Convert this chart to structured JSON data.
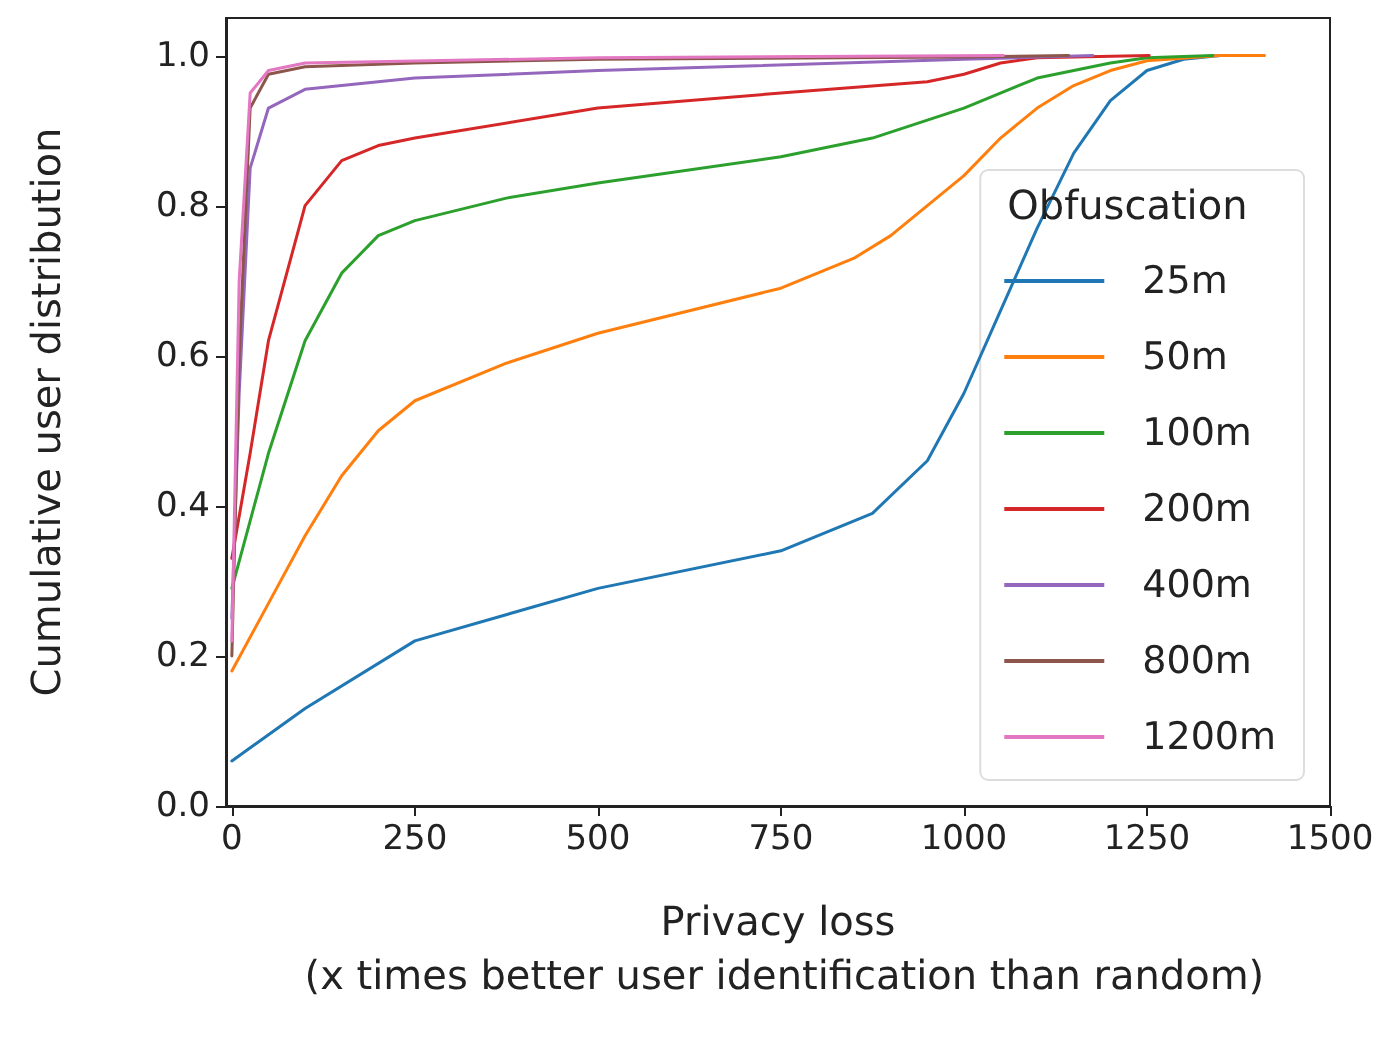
{
  "chart_data": {
    "type": "line",
    "xlabel": "Privacy loss\n (x times better user identification than random)",
    "ylabel": "Cumulative user distribution",
    "legend_title": "Obfuscation",
    "xlim": [
      -8,
      1500
    ],
    "xticks": [
      0,
      250,
      500,
      750,
      {
        "value": 1000,
        "label": "1000"
      },
      {
        "value": 1250,
        "label": "1250"
      },
      {
        "value": 1500,
        "label": "1500"
      }
    ],
    "ylim": [
      0,
      1.05
    ],
    "yticks": [
      {
        "value": 0,
        "label": "0.0"
      },
      0.2,
      0.4,
      0.6,
      0.8,
      {
        "value": 1,
        "label": "1.0"
      }
    ],
    "grid": false,
    "legend": "lower right",
    "marker": "none",
    "line_style": "solid",
    "series": [
      {
        "name": "25m",
        "color": "#1f77b4",
        "x": [
          0,
          100,
          250,
          500,
          750,
          875,
          950,
          1000,
          1050,
          1100,
          1150,
          1200,
          1250,
          1300,
          1350,
          1410
        ],
        "values": [
          0.06,
          0.13,
          0.22,
          0.29,
          0.34,
          0.39,
          0.46,
          0.55,
          0.66,
          0.77,
          0.87,
          0.94,
          0.98,
          0.995,
          1.0,
          1.0
        ]
      },
      {
        "name": "50m",
        "color": "#ff7f0e",
        "x": [
          0,
          50,
          100,
          150,
          200,
          250,
          375,
          500,
          750,
          850,
          900,
          1000,
          1050,
          1100,
          1150,
          1200,
          1250,
          1350,
          1410
        ],
        "values": [
          0.18,
          0.27,
          0.36,
          0.44,
          0.5,
          0.54,
          0.59,
          0.63,
          0.69,
          0.73,
          0.76,
          0.84,
          0.89,
          0.93,
          0.96,
          0.98,
          0.993,
          1.0,
          1.0
        ]
      },
      {
        "name": "100m",
        "color": "#2ca02c",
        "x": [
          0,
          25,
          50,
          100,
          150,
          200,
          250,
          375,
          500,
          750,
          875,
          1000,
          1100,
          1200,
          1250,
          1340
        ],
        "values": [
          0.29,
          0.38,
          0.47,
          0.62,
          0.71,
          0.76,
          0.78,
          0.81,
          0.83,
          0.865,
          0.89,
          0.93,
          0.97,
          0.99,
          0.997,
          1.0
        ]
      },
      {
        "name": "200m",
        "color": "#d62728",
        "x": [
          0,
          25,
          50,
          100,
          150,
          200,
          250,
          500,
          750,
          950,
          1000,
          1050,
          1100,
          1253
        ],
        "values": [
          0.33,
          0.47,
          0.62,
          0.8,
          0.86,
          0.88,
          0.89,
          0.93,
          0.95,
          0.965,
          0.975,
          0.99,
          0.997,
          1.0
        ]
      },
      {
        "name": "400m",
        "color": "#9467bd",
        "x": [
          0,
          10,
          25,
          50,
          100,
          250,
          500,
          1000,
          1176
        ],
        "values": [
          0.25,
          0.55,
          0.85,
          0.93,
          0.955,
          0.97,
          0.98,
          0.995,
          1.0
        ]
      },
      {
        "name": "800m",
        "color": "#8c564b",
        "x": [
          0,
          10,
          25,
          50,
          100,
          250,
          500,
          1000,
          1143
        ],
        "values": [
          0.2,
          0.6,
          0.93,
          0.975,
          0.985,
          0.99,
          0.995,
          0.998,
          1.0
        ]
      },
      {
        "name": "1200m",
        "color": "#e377c2",
        "x": [
          0,
          10,
          25,
          50,
          100,
          500,
          1054
        ],
        "values": [
          0.22,
          0.7,
          0.95,
          0.98,
          0.99,
          0.997,
          1.0
        ]
      }
    ]
  }
}
